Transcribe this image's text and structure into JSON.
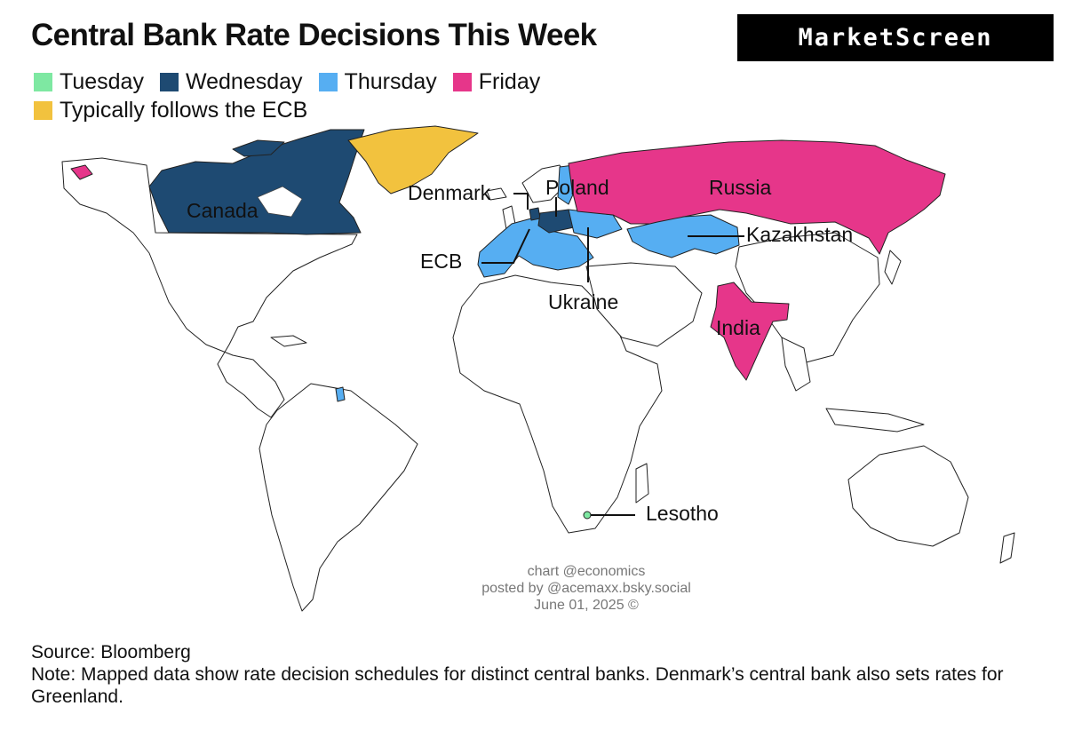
{
  "title": "Central Bank Rate Decisions This Week",
  "brand": "MarketScreen",
  "legend": [
    {
      "label": "Tuesday",
      "color": "#7ee8a2"
    },
    {
      "label": "Wednesday",
      "color": "#1e4a72"
    },
    {
      "label": "Thursday",
      "color": "#56aef2"
    },
    {
      "label": "Friday",
      "color": "#e6368a"
    },
    {
      "label": "Typically follows the ECB",
      "color": "#f2c23e"
    }
  ],
  "map": {
    "labels": {
      "canada": "Canada",
      "denmark": "Denmark",
      "poland": "Poland",
      "russia": "Russia",
      "kazakhstan": "Kazakhstan",
      "ecb": "ECB",
      "ukraine": "Ukraine",
      "india": "India",
      "lesotho": "Lesotho"
    },
    "decisions": [
      {
        "bank": "Canada",
        "day": "Wednesday"
      },
      {
        "bank": "Denmark",
        "day": "Wednesday"
      },
      {
        "bank": "Poland",
        "day": "Wednesday"
      },
      {
        "bank": "ECB",
        "day": "Thursday"
      },
      {
        "bank": "Ukraine",
        "day": "Thursday"
      },
      {
        "bank": "Kazakhstan",
        "day": "Thursday"
      },
      {
        "bank": "Russia",
        "day": "Friday"
      },
      {
        "bank": "India",
        "day": "Friday"
      },
      {
        "bank": "Lesotho",
        "day": "Tuesday"
      },
      {
        "bank": "Greenland",
        "day": "Typically follows the ECB"
      }
    ]
  },
  "watermark": {
    "line1": "chart @economics",
    "line2": "posted by @acemaxx.bsky.social",
    "line3": "June 01, 2025 ©"
  },
  "footer": {
    "source": "Source: Bloomberg",
    "note": "Note: Mapped data show rate decision schedules for distinct central banks. Denmark’s central bank also sets rates for Greenland."
  }
}
